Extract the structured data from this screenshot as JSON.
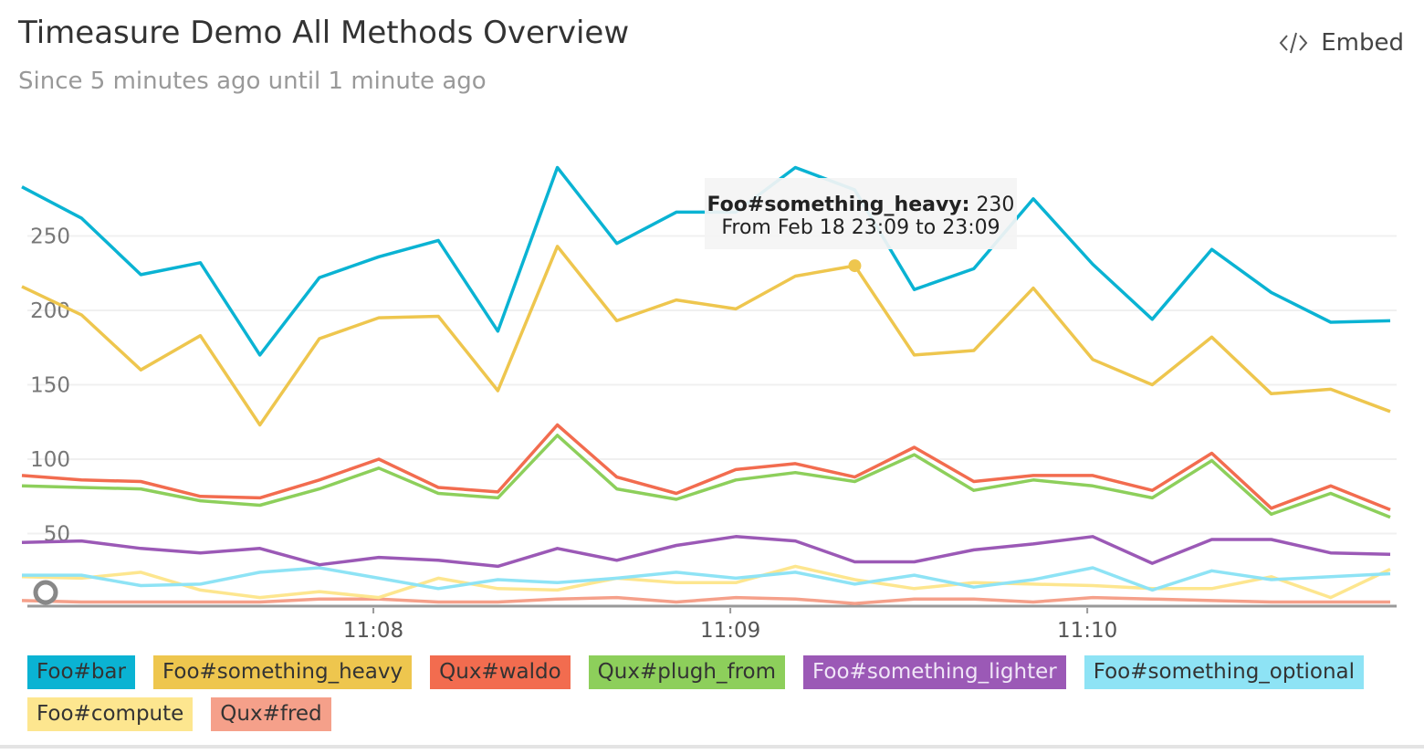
{
  "embed": "Embed",
  "chart_data": {
    "type": "line",
    "title": "Timeasure Demo All Methods Overview",
    "subtitle": "Since 5 minutes ago until 1 minute ago",
    "categories": [
      null,
      null,
      null,
      null,
      null,
      null,
      "11:08",
      null,
      null,
      null,
      null,
      null,
      "11:09",
      null,
      null,
      null,
      null,
      null,
      "11:10",
      null,
      null,
      null,
      null,
      null
    ],
    "ylim": [
      0,
      300
    ],
    "yticks": [
      50,
      100,
      150,
      200,
      250
    ],
    "grid": true,
    "series": [
      {
        "name": "Foo#bar",
        "color": "#0ab3d3",
        "label_color": "#333333",
        "values": [
          283,
          262,
          224,
          232,
          170,
          222,
          236,
          247,
          186,
          296,
          245,
          266,
          266,
          296,
          281,
          214,
          228,
          275,
          231,
          194,
          241,
          212,
          192,
          193
        ]
      },
      {
        "name": "Foo#something_heavy",
        "color": "#eec64e",
        "label_color": "#333333",
        "values": [
          216,
          197,
          160,
          183,
          123,
          181,
          195,
          196,
          146,
          243,
          193,
          207,
          201,
          223,
          230,
          170,
          173,
          215,
          167,
          150,
          182,
          144,
          147,
          132
        ]
      },
      {
        "name": "Qux#waldo",
        "color": "#f26c4f",
        "label_color": "#333333",
        "values": [
          89,
          86,
          85,
          75,
          74,
          86,
          100,
          81,
          78,
          123,
          88,
          77,
          93,
          97,
          88,
          108,
          85,
          89,
          89,
          79,
          104,
          67,
          82,
          66
        ]
      },
      {
        "name": "Qux#plugh_from",
        "color": "#8dcf5b",
        "label_color": "#333333",
        "values": [
          82,
          81,
          80,
          72,
          69,
          80,
          94,
          77,
          74,
          116,
          80,
          73,
          86,
          91,
          85,
          103,
          79,
          86,
          82,
          74,
          99,
          63,
          77,
          61
        ]
      },
      {
        "name": "Foo#something_lighter",
        "color": "#9b59b6",
        "label_color": "#f0e6f7",
        "values": [
          44,
          45,
          40,
          37,
          40,
          29,
          34,
          32,
          28,
          40,
          32,
          42,
          48,
          45,
          31,
          31,
          39,
          43,
          48,
          30,
          46,
          46,
          37,
          36
        ]
      },
      {
        "name": "Foo#something_optional",
        "color": "#8ee3f5",
        "label_color": "#333333",
        "values": [
          22,
          22,
          15,
          16,
          24,
          27,
          20,
          13,
          19,
          17,
          20,
          24,
          20,
          24,
          16,
          22,
          14,
          19,
          27,
          12,
          25,
          19,
          21,
          23
        ]
      },
      {
        "name": "Foo#compute",
        "color": "#fde68f",
        "label_color": "#333333",
        "values": [
          21,
          20,
          24,
          12,
          7,
          11,
          7,
          20,
          13,
          12,
          20,
          17,
          17,
          28,
          19,
          13,
          17,
          16,
          15,
          13,
          13,
          21,
          7,
          26
        ]
      },
      {
        "name": "Qux#fred",
        "color": "#f5a08a",
        "label_color": "#333333",
        "values": [
          5,
          4,
          4,
          4,
          4,
          6,
          6,
          4,
          4,
          6,
          7,
          4,
          7,
          6,
          3,
          6,
          6,
          4,
          7,
          6,
          5,
          4,
          4,
          4
        ]
      }
    ],
    "tooltip": {
      "series": 1,
      "index": 14,
      "label": "Foo#something_heavy:",
      "value": 230,
      "range": "From Feb 18 23:09 to 23:09"
    }
  }
}
